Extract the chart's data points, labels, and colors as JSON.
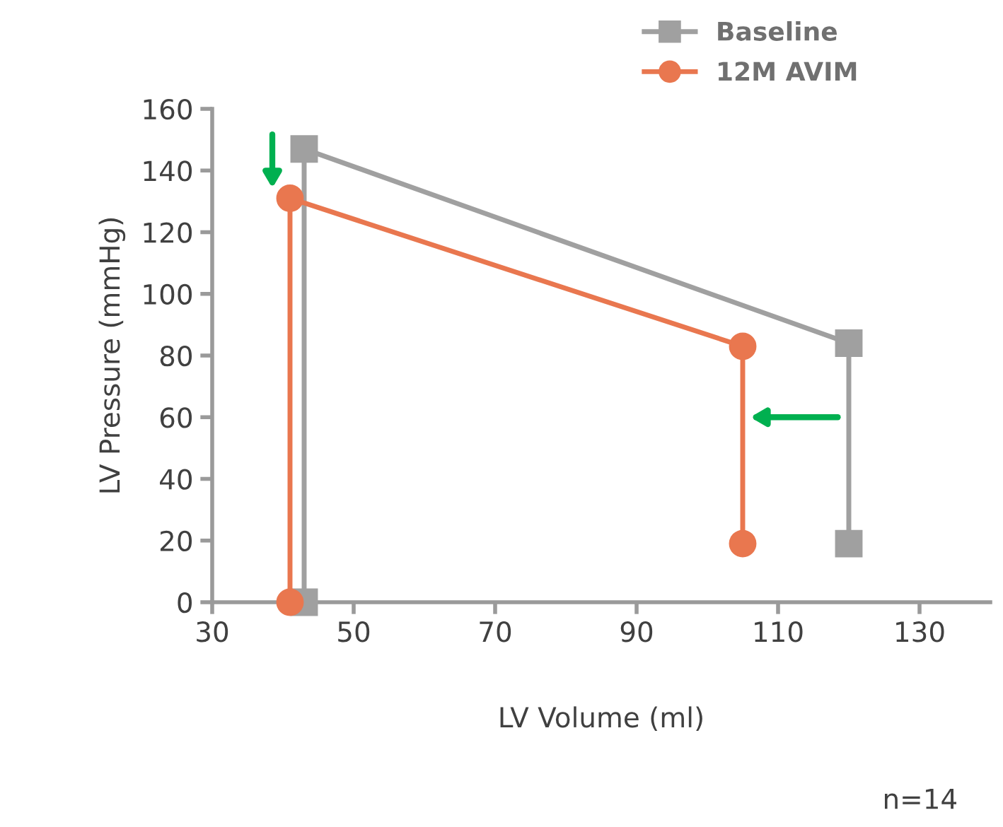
{
  "chart_data": {
    "type": "line",
    "xlabel": "LV Volume (ml)",
    "ylabel": "LV Pressure (mmHg)",
    "xlim": [
      30,
      140
    ],
    "xticks": [
      30,
      50,
      70,
      90,
      110,
      130
    ],
    "ylim": [
      0,
      160
    ],
    "yticks": [
      0,
      20,
      40,
      60,
      80,
      100,
      120,
      140,
      160
    ],
    "grid": false,
    "legend": "top right",
    "series": [
      {
        "name": "Baseline",
        "color": "#a0a0a0",
        "marker": "square",
        "x": [
          43,
          43,
          120,
          120
        ],
        "values": [
          0,
          147,
          84,
          19
        ]
      },
      {
        "name": "12M AVIM",
        "color": "#e9774f",
        "marker": "circle",
        "x": [
          41,
          41,
          105,
          105
        ],
        "values": [
          0,
          131,
          83,
          19
        ]
      }
    ],
    "annotations": [
      "n=14"
    ]
  }
}
